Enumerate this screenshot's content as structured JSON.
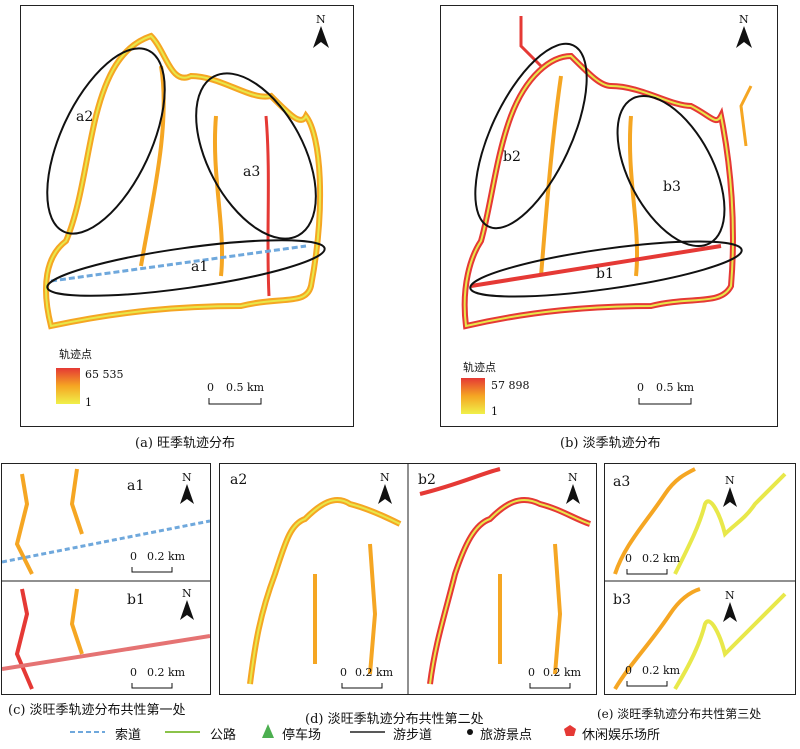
{
  "panels": {
    "a": {
      "caption": "(a) 旺季轨迹分布",
      "legend_title": "轨迹点",
      "max": "65 535",
      "min": "1",
      "scale_zero": "0",
      "scale_label": "0.5 km",
      "north": "N",
      "labels": [
        "a1",
        "a2",
        "a3"
      ]
    },
    "b": {
      "caption": "(b) 淡季轨迹分布",
      "legend_title": "轨迹点",
      "max": "57 898",
      "min": "1",
      "scale_zero": "0",
      "scale_label": "0.5 km",
      "north": "N",
      "labels": [
        "b1",
        "b2",
        "b3"
      ]
    },
    "c": {
      "caption": "(c) 淡旺季轨迹分布共性第一处",
      "top_label": "a1",
      "bottom_label": "b1",
      "scale_zero": "0",
      "scale_label": "0.2 km",
      "north": "N"
    },
    "d": {
      "caption": "(d) 淡旺季轨迹分布共性第二处",
      "left_label": "a2",
      "right_label": "b2",
      "scale_zero": "0",
      "scale_label": "0.2 km",
      "north": "N"
    },
    "e": {
      "caption": "(e) 淡旺季轨迹分布共性第三处",
      "top_label": "a3",
      "bottom_label": "b3",
      "scale_zero": "0",
      "scale_label": "0.2 km",
      "north": "N"
    }
  },
  "legend": [
    {
      "label": "索道",
      "icon": "cableway-line",
      "color": "#6fa8dc"
    },
    {
      "label": "公路",
      "icon": "road-line",
      "color": "#8bc34a"
    },
    {
      "label": "停车场",
      "icon": "parking-triangle",
      "color": "#4caf50"
    },
    {
      "label": "游步道",
      "icon": "trail-line",
      "color": "#222222"
    },
    {
      "label": "旅游景点",
      "icon": "attraction-dot",
      "color": "#111111"
    },
    {
      "label": "休闲娱乐场所",
      "icon": "leisure-pentagon",
      "color": "#e53935"
    }
  ],
  "colors": {
    "high": "#e53935",
    "mid": "#f5a623",
    "low": "#e8e84a",
    "frame": "#222222"
  }
}
